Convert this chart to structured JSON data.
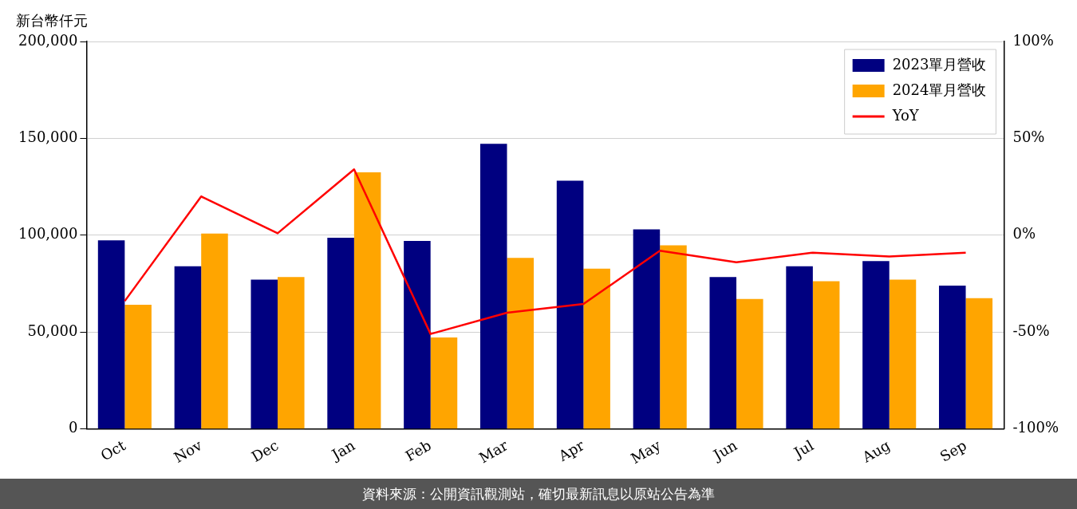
{
  "chart_data": {
    "type": "bar",
    "ylabel": "新台幣仟元",
    "categories": [
      "Oct",
      "Nov",
      "Dec",
      "Jan",
      "Feb",
      "Mar",
      "Apr",
      "May",
      "Jun",
      "Jul",
      "Aug",
      "Sep"
    ],
    "series": [
      {
        "name": "2023單月營收",
        "color": "#000080",
        "values": [
          97400,
          84000,
          77100,
          98700,
          97000,
          147200,
          128100,
          103000,
          78400,
          84000,
          86600,
          74000
        ]
      },
      {
        "name": "2024單月營收",
        "color": "#ffa500",
        "values": [
          64100,
          100900,
          78400,
          132500,
          47200,
          88300,
          82700,
          94800,
          67100,
          76200,
          77100,
          67500
        ]
      },
      {
        "name": "YoY",
        "type": "line",
        "axis": "y2",
        "color": "#ff0000",
        "values": [
          -34,
          20,
          1,
          34,
          -51,
          -40,
          -35.5,
          -8,
          -14,
          -9,
          -11,
          -9
        ]
      }
    ],
    "ylim": [
      0,
      200000
    ],
    "yticks": [
      {
        "value": 0,
        "label": "0"
      },
      {
        "value": 50000,
        "label": "50,000"
      },
      {
        "value": 100000,
        "label": "100,000"
      },
      {
        "value": 150000,
        "label": "150,000"
      },
      {
        "value": 200000,
        "label": "200,000"
      }
    ],
    "y2lim": [
      -100,
      100
    ],
    "y2ticks": [
      {
        "value": -100,
        "label": "-100%"
      },
      {
        "value": -50,
        "label": "-50%"
      },
      {
        "value": 0,
        "label": "0%"
      },
      {
        "value": 50,
        "label": "50%"
      },
      {
        "value": 100,
        "label": "100%"
      }
    ],
    "grid": "y",
    "legend": "top right",
    "marker": "none",
    "line_style": "solid",
    "annotations": [
      "資料來源：公開資訊觀測站，確切最新訊息以原站公告為準"
    ]
  }
}
